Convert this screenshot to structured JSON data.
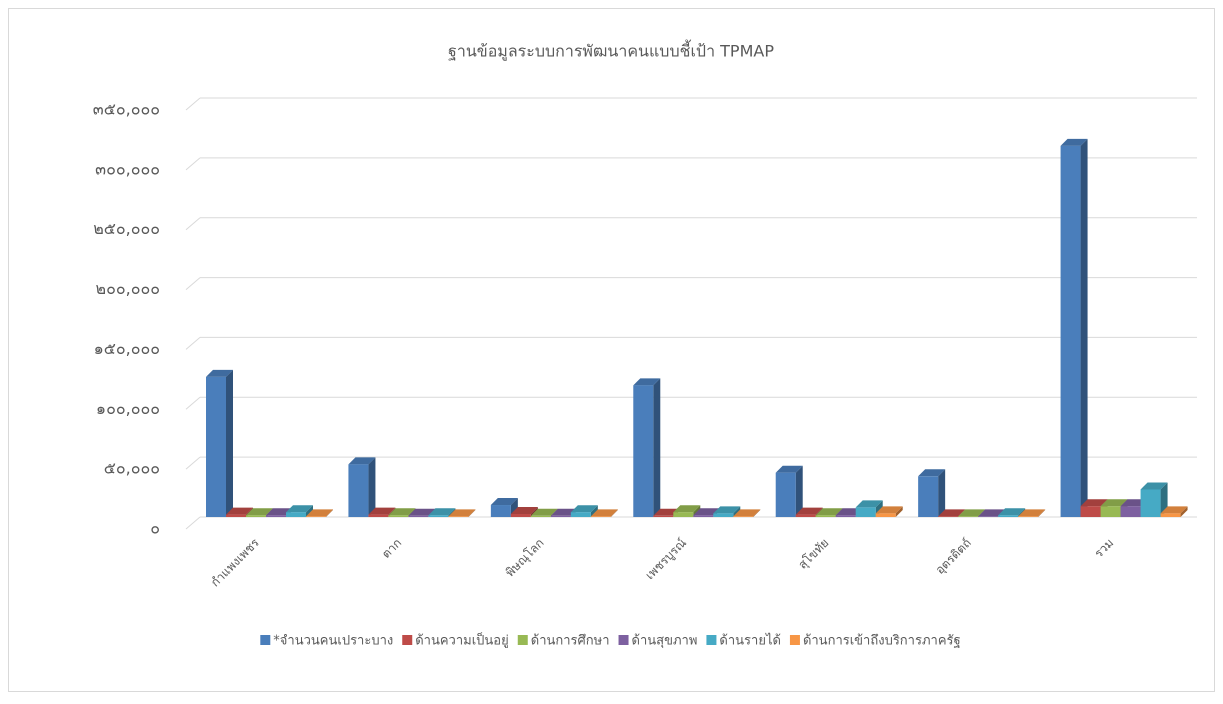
{
  "chart_data": {
    "type": "bar3d",
    "title": "ฐานข้อมูลระบบการพัฒนาคนแบบชี้เป้า TPMAP",
    "categories": [
      "กำแพงเพชร",
      "ตาก",
      "พิษณุโลก",
      "เพชรบูรณ์",
      "สุโขทัย",
      "อุตรดิตถ์",
      "รวม"
    ],
    "series": [
      {
        "name": "*จำนวนคนเปราะบาง",
        "color": "#4a7ebb",
        "values": [
          117000,
          44000,
          10000,
          110000,
          37000,
          34000,
          310000
        ]
      },
      {
        "name": "ด้านความเป็นอยู่",
        "color": "#be4b48",
        "values": [
          2000,
          2000,
          2500,
          1000,
          2000,
          500,
          9000
        ]
      },
      {
        "name": "ด้านการศึกษา",
        "color": "#98b954",
        "values": [
          1500,
          1500,
          1000,
          4000,
          1500,
          500,
          9000
        ]
      },
      {
        "name": "ด้านสุขภาพ",
        "color": "#7d60a0",
        "values": [
          1500,
          1000,
          1000,
          1500,
          1500,
          500,
          9000
        ]
      },
      {
        "name": "ด้านรายได้",
        "color": "#46aac5",
        "values": [
          4000,
          1500,
          4000,
          3000,
          8000,
          1500,
          23000
        ]
      },
      {
        "name": "ด้านการเข้าถึงบริการภาครัฐ",
        "color": "#f79646",
        "values": [
          500,
          500,
          500,
          500,
          3000,
          500,
          3000
        ]
      }
    ],
    "ylim": [
      0,
      350000
    ],
    "yticks": [
      {
        "value": 0,
        "label": "๐"
      },
      {
        "value": 50000,
        "label": "๕๐,๐๐๐"
      },
      {
        "value": 100000,
        "label": "๑๐๐,๐๐๐"
      },
      {
        "value": 150000,
        "label": "๑๕๐,๐๐๐"
      },
      {
        "value": 200000,
        "label": "๒๐๐,๐๐๐"
      },
      {
        "value": 250000,
        "label": "๒๕๐,๐๐๐"
      },
      {
        "value": 300000,
        "label": "๓๐๐,๐๐๐"
      },
      {
        "value": 350000,
        "label": "๓๕๐,๐๐๐"
      }
    ],
    "grid": true,
    "legend": "bottom"
  }
}
